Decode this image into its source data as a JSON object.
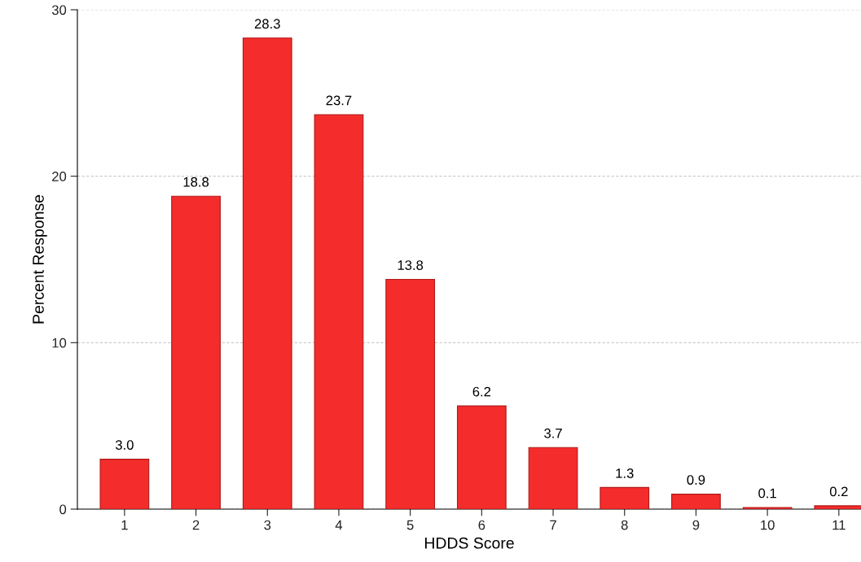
{
  "chart_data": {
    "type": "bar",
    "xlabel": "HDDS Score",
    "ylabel": "Percent Response",
    "categories": [
      "1",
      "2",
      "3",
      "4",
      "5",
      "6",
      "7",
      "8",
      "9",
      "10",
      "11"
    ],
    "values": [
      3.0,
      18.8,
      28.3,
      23.7,
      13.8,
      6.2,
      3.7,
      1.3,
      0.9,
      0.1,
      0.2
    ],
    "value_labels": [
      "3.0",
      "18.8",
      "28.3",
      "23.7",
      "13.8",
      "6.2",
      "3.7",
      "1.3",
      "0.9",
      "0.1",
      "0.2"
    ],
    "color": "#f42c2c",
    "ylim": [
      0,
      30
    ],
    "yticks": [
      0,
      10,
      20,
      30
    ],
    "grid": "y"
  }
}
